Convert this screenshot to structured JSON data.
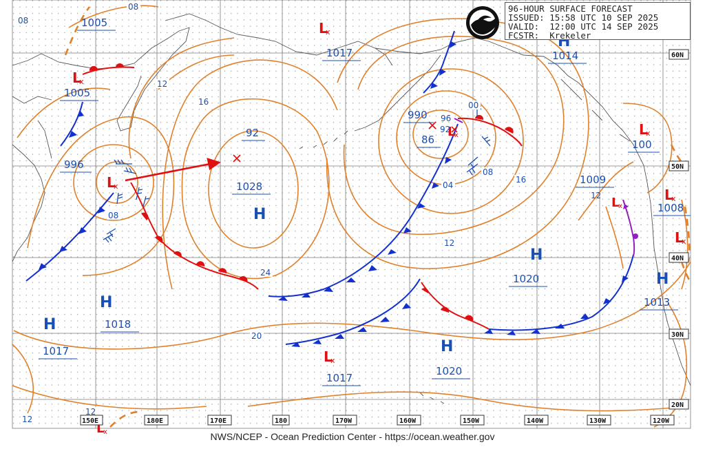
{
  "header": {
    "line1": "96-HOUR SURFACE FORECAST",
    "line2": "ISSUED: 15:58 UTC 10 SEP 2025",
    "line3": "VALID:  12:00 UTC 14 SEP 2025",
    "line4": "FCSTR:  Krekeler"
  },
  "logo": {
    "icon": "noaa-logo",
    "text": "NOAA"
  },
  "footer": "NWS/NCEP - Ocean Prediction Center - https://ocean.weather.gov",
  "colors": {
    "isobar": "#e0802a",
    "label_blue": "#1a4fb3",
    "low_red": "#dd1111",
    "cold_front": "#1230d0",
    "warm_front": "#e01010",
    "occluded_front": "#9020c0",
    "coast": "#555555",
    "grid": "#777777"
  },
  "lon_labels": [
    "180E",
    "170E",
    "180",
    "170W",
    "160W",
    "150W",
    "140W",
    "130W",
    "120W"
  ],
  "lat_labels": [
    "60N",
    "50N",
    "40N",
    "30N",
    "20N"
  ],
  "corner_labels": {
    "bl1": "12",
    "bl2": "150E"
  },
  "pressure_labels": [
    {
      "text": "1005",
      "kind": "box"
    },
    {
      "text": "1005",
      "kind": "box"
    },
    {
      "text": "996",
      "kind": "box"
    },
    {
      "text": "1018",
      "kind": "box"
    },
    {
      "text": "1017",
      "kind": "box"
    },
    {
      "text": "92",
      "kind": "box"
    },
    {
      "text": "1028",
      "kind": "box"
    },
    {
      "text": "1017",
      "kind": "box"
    },
    {
      "text": "990",
      "kind": "box"
    },
    {
      "text": "86",
      "kind": "box"
    },
    {
      "text": "1014",
      "kind": "box"
    },
    {
      "text": "1020",
      "kind": "box"
    },
    {
      "text": "1009",
      "kind": "box"
    },
    {
      "text": "100",
      "kind": "box"
    },
    {
      "text": "1008",
      "kind": "box"
    },
    {
      "text": "1013",
      "kind": "box"
    },
    {
      "text": "1017",
      "kind": "box"
    },
    {
      "text": "1020",
      "kind": "box"
    },
    {
      "text": "1017",
      "kind": "box"
    },
    {
      "text": "96",
      "kind": "small"
    },
    {
      "text": "92",
      "kind": "small"
    },
    {
      "text": "12",
      "kind": "small"
    }
  ],
  "isobar_labels": [
    "08",
    "08",
    "12",
    "16",
    "04",
    "08",
    "16",
    "12",
    "24",
    "20",
    "12",
    "08",
    "00",
    "12"
  ],
  "high_symbol": "H",
  "low_symbol": "L"
}
